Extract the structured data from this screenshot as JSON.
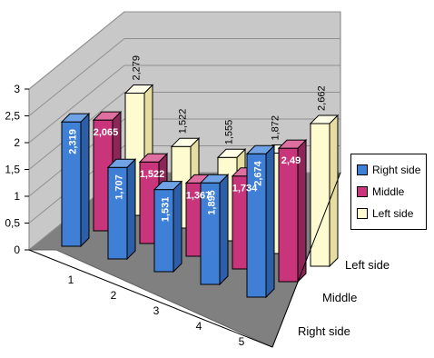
{
  "chart_data": {
    "type": "bar",
    "subtype": "3d-clustered-column",
    "categories": [
      "1",
      "2",
      "3",
      "4",
      "5"
    ],
    "series": [
      {
        "name": "Right side",
        "values": [
          2.319,
          1.707,
          1.531,
          1.895,
          2.674
        ],
        "labels": [
          "2,319",
          "1,707",
          "1,531",
          "1,895",
          "2,674"
        ],
        "color": "#3F7FD6",
        "side": "#2D5FA9",
        "top": "#6FA3E6"
      },
      {
        "name": "Middle",
        "values": [
          2.065,
          1.522,
          1.367,
          1.734,
          2.49
        ],
        "labels": [
          "2,065",
          "1,522",
          "1,367",
          "1,734",
          "2,49"
        ],
        "color": "#C8357A",
        "side": "#8E2558",
        "top": "#DE6FA0"
      },
      {
        "name": "Left side",
        "values": [
          2.279,
          1.522,
          1.555,
          1.872,
          2.662
        ],
        "labels": [
          "2,279",
          "1,522",
          "1,555",
          "1,872",
          "2,662"
        ],
        "color": "#FFFBD0",
        "side": "#E6DDA0",
        "top": "#FFFFE8"
      }
    ],
    "ylim": [
      0,
      3
    ],
    "yticks": [
      "0",
      "0,5",
      "1",
      "1,5",
      "2",
      "2,5",
      "3"
    ],
    "depth_labels": [
      "Left side",
      "Middle",
      "Right side"
    ],
    "grid": true,
    "legend": "right"
  }
}
